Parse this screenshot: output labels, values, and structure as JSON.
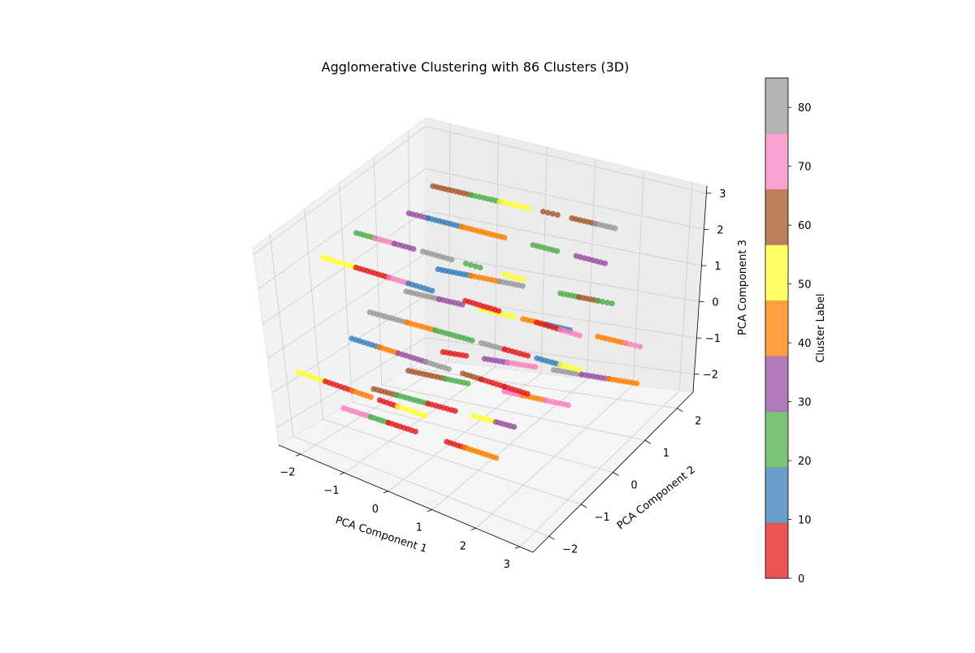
{
  "chart_data": {
    "type": "scatter",
    "title": "Agglomerative Clustering with 86 Clusters (3D)",
    "xlabel": "PCA Component 1",
    "ylabel": "PCA Component 2",
    "zlabel": "PCA Component 3",
    "xlim": [
      -2.5,
      3.3
    ],
    "ylim": [
      -2.5,
      2.5
    ],
    "zlim": [
      -2.5,
      3.2
    ],
    "xticks": [
      -2,
      -1,
      0,
      1,
      2,
      3
    ],
    "yticks": [
      -2,
      -1,
      0,
      1,
      2
    ],
    "zticks": [
      -2,
      -1,
      0,
      1,
      2,
      3
    ],
    "xtick_labels": [
      "−2",
      "−1",
      "0",
      "1",
      "2",
      "3"
    ],
    "ytick_labels": [
      "−2",
      "−1",
      "0",
      "1",
      "2"
    ],
    "ztick_labels": [
      "−2",
      "−1",
      "0",
      "1",
      "2",
      "3"
    ],
    "grid": true,
    "colormap": "Set1",
    "colorbar": {
      "label": "Cluster Label",
      "range": [
        0,
        85
      ],
      "ticks": [
        0,
        10,
        20,
        30,
        40,
        50,
        60,
        70,
        80
      ],
      "tick_labels": [
        "0",
        "10",
        "20",
        "30",
        "40",
        "50",
        "60",
        "70",
        "80"
      ],
      "colors": [
        "#e41a1c",
        "#377eb8",
        "#4daf4a",
        "#984ea3",
        "#ff7f00",
        "#ffff33",
        "#a65628",
        "#f781bf",
        "#999999"
      ]
    },
    "series": [
      {
        "y": 2,
        "z": 2,
        "segments": [
          [
            -2.0,
            -1.2,
            6
          ],
          [
            -1.2,
            -0.6,
            2
          ],
          [
            -0.6,
            0.0,
            5
          ],
          [
            0.3,
            0.6,
            6
          ],
          [
            0.9,
            1.4,
            6
          ],
          [
            1.4,
            1.8,
            8
          ]
        ]
      },
      {
        "y": 1,
        "z": 2,
        "segments": [
          [
            -1.8,
            -1.4,
            3
          ],
          [
            -1.4,
            -0.7,
            1
          ],
          [
            -0.7,
            0.2,
            4
          ],
          [
            0.8,
            1.3,
            2
          ],
          [
            1.7,
            2.3,
            3
          ]
        ]
      },
      {
        "y": 0,
        "z": 2,
        "segments": [
          [
            -2.2,
            -1.8,
            2
          ],
          [
            -1.8,
            -1.4,
            7
          ],
          [
            -1.4,
            -1.0,
            3
          ],
          [
            -0.8,
            -0.2,
            8
          ],
          [
            0.1,
            0.4,
            2
          ],
          [
            0.9,
            1.3,
            5
          ]
        ]
      },
      {
        "y": -1,
        "z": 2,
        "segments": [
          [
            -2.2,
            -1.5,
            5
          ],
          [
            -1.5,
            -0.8,
            0
          ],
          [
            -0.8,
            -0.4,
            7
          ],
          [
            -0.4,
            0.1,
            1
          ],
          [
            0.8,
            1.5,
            0
          ],
          [
            2.3,
            2.8,
            0
          ],
          [
            2.8,
            3.2,
            7
          ]
        ]
      },
      {
        "y": 2,
        "z": 0,
        "segments": [
          [
            -1.9,
            -1.2,
            1
          ],
          [
            -1.2,
            -0.6,
            4
          ],
          [
            -0.6,
            -0.1,
            8
          ],
          [
            0.7,
            1.1,
            2
          ],
          [
            1.1,
            1.5,
            6
          ],
          [
            1.5,
            1.8,
            2
          ]
        ]
      },
      {
        "y": 1,
        "z": 0,
        "segments": [
          [
            -1.9,
            -1.2,
            8
          ],
          [
            -1.2,
            -0.7,
            3
          ],
          [
            -0.3,
            0.4,
            5
          ],
          [
            0.6,
            1.1,
            4
          ],
          [
            1.1,
            1.6,
            1
          ],
          [
            2.2,
            2.8,
            4
          ],
          [
            2.8,
            3.1,
            7
          ]
        ]
      },
      {
        "y": 0,
        "z": 0,
        "segments": [
          [
            -2.0,
            -1.2,
            8
          ],
          [
            -1.2,
            -0.6,
            4
          ],
          [
            -0.6,
            0.2,
            2
          ],
          [
            0.4,
            0.9,
            8
          ],
          [
            0.9,
            1.4,
            0
          ],
          [
            1.6,
            2.1,
            1
          ],
          [
            2.1,
            2.5,
            5
          ]
        ]
      },
      {
        "y": -1,
        "z": 0,
        "segments": [
          [
            -1.7,
            -1.1,
            1
          ],
          [
            -1.1,
            -0.7,
            4
          ],
          [
            -0.7,
            -0.1,
            3
          ],
          [
            -0.1,
            0.4,
            8
          ],
          [
            0.7,
            1.1,
            6
          ],
          [
            1.1,
            1.6,
            0
          ],
          [
            1.6,
            2.1,
            0
          ]
        ]
      },
      {
        "y": 2,
        "z": -2,
        "segments": [
          [
            -1.8,
            -1.3,
            0
          ],
          [
            -0.9,
            -0.4,
            3
          ],
          [
            -0.4,
            0.2,
            7
          ],
          [
            0.6,
            1.2,
            8
          ],
          [
            1.2,
            1.8,
            3
          ],
          [
            1.8,
            2.4,
            4
          ]
        ]
      },
      {
        "y": 1,
        "z": -2,
        "segments": [
          [
            -1.9,
            -1.1,
            6
          ],
          [
            -1.1,
            -0.6,
            2
          ],
          [
            0.2,
            0.6,
            7
          ],
          [
            0.6,
            1.1,
            4
          ],
          [
            1.1,
            1.6,
            7
          ]
        ]
      },
      {
        "y": 0,
        "z": -2,
        "segments": [
          [
            -2.0,
            -1.5,
            6
          ],
          [
            -1.5,
            -0.8,
            2
          ],
          [
            -0.8,
            -0.2,
            0
          ],
          [
            0.2,
            0.7,
            5
          ],
          [
            0.7,
            1.1,
            3
          ]
        ]
      },
      {
        "y": -1,
        "z": -2,
        "segments": [
          [
            -2.0,
            -1.4,
            7
          ],
          [
            -1.4,
            -1.0,
            2
          ],
          [
            -1.0,
            -0.4,
            0
          ],
          [
            0.3,
            0.7,
            0
          ],
          [
            0.7,
            1.4,
            4
          ]
        ]
      },
      {
        "y": -1.5,
        "z": -1,
        "segments": [
          [
            -2.6,
            -2.0,
            5
          ],
          [
            -2.0,
            -1.4,
            0
          ],
          [
            -1.4,
            -1.0,
            4
          ],
          [
            -0.8,
            -0.4,
            0
          ],
          [
            -0.4,
            0.2,
            5
          ]
        ]
      }
    ]
  }
}
